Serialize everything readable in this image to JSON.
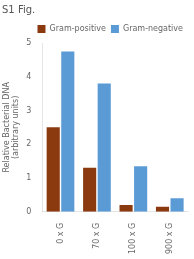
{
  "chart_data": {
    "type": "bar",
    "title": "S1 Fig.",
    "categories": [
      "0 x G",
      "70 x G",
      "100 x G",
      "900 x G"
    ],
    "series": [
      {
        "name": "Gram-positive",
        "color": "#8B3A10",
        "values": [
          2.5,
          1.3,
          0.2,
          0.15
        ]
      },
      {
        "name": "Gram-negative",
        "color": "#5B9BD5",
        "values": [
          4.75,
          3.8,
          1.35,
          0.4
        ]
      }
    ],
    "ylabel": "Relative Bacterial DNA\n(arbitrary units)",
    "ylim": [
      0,
      5
    ],
    "yticks": [
      0,
      1,
      2,
      3,
      4,
      5
    ],
    "grid": false,
    "legend": "upper right"
  }
}
